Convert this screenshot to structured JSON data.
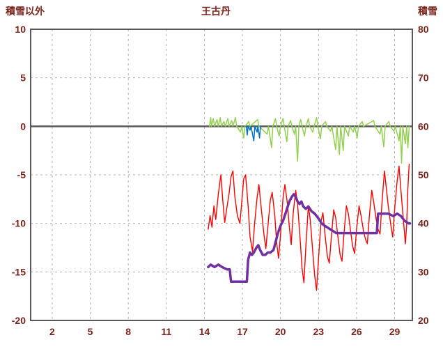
{
  "chart_data": {
    "type": "line",
    "title": "王古丹",
    "left_axis_label": "積雪以外",
    "right_axis_label": "積雪",
    "xlim": [
      0.3,
      30.4
    ],
    "x_ticks": [
      2,
      5,
      8,
      11,
      14,
      17,
      20,
      23,
      26,
      29
    ],
    "left_ylim": [
      -20,
      10
    ],
    "left_ticks": [
      10,
      5,
      0,
      -5,
      -10,
      -15,
      -20
    ],
    "right_ylim": [
      20,
      80
    ],
    "right_ticks": [
      80,
      70,
      60,
      50,
      40,
      30,
      20
    ],
    "zero_line": 0,
    "grid": "dashed",
    "legend": "none",
    "colors": {
      "text": "#7b241c",
      "grid": "#b3b3b3",
      "frame": "#595959",
      "red": "#ff0000",
      "purple": "#7030a0",
      "green": "#92d050",
      "blue": "#0070c0"
    },
    "series": [
      {
        "name": "green",
        "color": "#92d050",
        "axis": "left",
        "width": 1.5,
        "points": [
          [
            14.4,
            0
          ],
          [
            14.5,
            0.9
          ],
          [
            14.55,
            0
          ],
          [
            14.7,
            0.8
          ],
          [
            14.8,
            0
          ],
          [
            15.0,
            0.7
          ],
          [
            15.1,
            0
          ],
          [
            15.25,
            0.9
          ],
          [
            15.35,
            0
          ],
          [
            15.55,
            0.5
          ],
          [
            15.65,
            0
          ],
          [
            15.85,
            0.8
          ],
          [
            15.95,
            0
          ],
          [
            16.15,
            0.6
          ],
          [
            16.25,
            0
          ],
          [
            16.45,
            0.9
          ],
          [
            16.55,
            0
          ],
          [
            16.85,
            -0.6
          ],
          [
            16.95,
            0
          ],
          [
            17.1,
            -1.2
          ],
          [
            17.2,
            0
          ],
          [
            17.5,
            0.5
          ],
          [
            17.6,
            0
          ],
          [
            18.2,
            0.7
          ],
          [
            18.3,
            0
          ],
          [
            18.95,
            -0.8
          ],
          [
            19.05,
            0
          ],
          [
            19.3,
            -2.2
          ],
          [
            19.4,
            0
          ],
          [
            19.6,
            0.8
          ],
          [
            19.7,
            0
          ],
          [
            19.9,
            -1.0
          ],
          [
            20.0,
            0
          ],
          [
            20.2,
            0.8
          ],
          [
            20.3,
            0
          ],
          [
            20.5,
            -1.6
          ],
          [
            20.6,
            0
          ],
          [
            20.8,
            0.6
          ],
          [
            20.9,
            0
          ],
          [
            21.1,
            -0.8
          ],
          [
            21.2,
            0
          ],
          [
            21.35,
            -3.6
          ],
          [
            21.45,
            0
          ],
          [
            21.6,
            0.7
          ],
          [
            21.7,
            0
          ],
          [
            21.9,
            -1.0
          ],
          [
            22.0,
            0
          ],
          [
            22.2,
            0.8
          ],
          [
            22.3,
            0
          ],
          [
            22.55,
            -0.6
          ],
          [
            22.65,
            0
          ],
          [
            22.85,
            0.9
          ],
          [
            22.95,
            0
          ],
          [
            23.15,
            -1.3
          ],
          [
            23.25,
            0
          ],
          [
            23.55,
            0.5
          ],
          [
            23.65,
            0
          ],
          [
            23.95,
            -0.5
          ],
          [
            24.05,
            0
          ],
          [
            24.35,
            -2.4
          ],
          [
            24.45,
            0
          ],
          [
            24.65,
            -2.9
          ],
          [
            24.75,
            0
          ],
          [
            24.95,
            -2.5
          ],
          [
            25.05,
            0
          ],
          [
            25.35,
            -1.0
          ],
          [
            25.45,
            0
          ],
          [
            25.75,
            -0.6
          ],
          [
            25.85,
            0
          ],
          [
            26.05,
            -1.2
          ],
          [
            26.15,
            0
          ],
          [
            26.45,
            0.5
          ],
          [
            26.55,
            0
          ],
          [
            27.35,
            0.6
          ],
          [
            27.45,
            0
          ],
          [
            27.85,
            -0.8
          ],
          [
            27.95,
            0
          ],
          [
            28.15,
            -2.1
          ],
          [
            28.25,
            0
          ],
          [
            28.55,
            0.5
          ],
          [
            28.65,
            0
          ],
          [
            28.95,
            -0.5
          ],
          [
            29.05,
            0
          ],
          [
            29.35,
            -1.5
          ],
          [
            29.45,
            0
          ],
          [
            29.55,
            -3.8
          ],
          [
            29.65,
            0
          ],
          [
            29.85,
            -1.8
          ],
          [
            29.95,
            0
          ],
          [
            30.05,
            -2.2
          ],
          [
            30.15,
            0
          ]
        ]
      },
      {
        "name": "blue",
        "color": "#0070c0",
        "axis": "left",
        "width": 1.5,
        "points": [
          [
            17.3,
            0
          ],
          [
            17.38,
            -0.9
          ],
          [
            17.45,
            0
          ],
          [
            17.6,
            -0.4
          ],
          [
            17.68,
            0
          ],
          [
            17.9,
            -1.5
          ],
          [
            17.98,
            0
          ],
          [
            18.15,
            -0.6
          ],
          [
            18.22,
            0
          ],
          [
            18.35,
            -1.2
          ],
          [
            18.42,
            0
          ]
        ]
      },
      {
        "name": "red",
        "color": "#ff0000",
        "axis": "left",
        "width": 1.4,
        "points": [
          [
            14.3,
            -10.6
          ],
          [
            14.45,
            -9.2
          ],
          [
            14.6,
            -10.4
          ],
          [
            14.75,
            -8.2
          ],
          [
            14.9,
            -9.6
          ],
          [
            15.1,
            -7.0
          ],
          [
            15.3,
            -5.0
          ],
          [
            15.45,
            -7.6
          ],
          [
            15.6,
            -9.9
          ],
          [
            15.75,
            -8.6
          ],
          [
            15.95,
            -6.9
          ],
          [
            16.1,
            -5.2
          ],
          [
            16.25,
            -4.6
          ],
          [
            16.4,
            -7.2
          ],
          [
            16.6,
            -9.2
          ],
          [
            16.8,
            -10.0
          ],
          [
            16.95,
            -7.8
          ],
          [
            17.1,
            -5.4
          ],
          [
            17.25,
            -5.0
          ],
          [
            17.45,
            -8.2
          ],
          [
            17.6,
            -11.4
          ],
          [
            17.8,
            -12.9
          ],
          [
            17.95,
            -10.2
          ],
          [
            18.15,
            -7.4
          ],
          [
            18.3,
            -6.0
          ],
          [
            18.5,
            -8.6
          ],
          [
            18.7,
            -11.2
          ],
          [
            18.85,
            -12.6
          ],
          [
            19.0,
            -10.4
          ],
          [
            19.2,
            -7.6
          ],
          [
            19.35,
            -6.8
          ],
          [
            19.55,
            -9.2
          ],
          [
            19.7,
            -12.0
          ],
          [
            19.85,
            -13.6
          ],
          [
            20.0,
            -11.2
          ],
          [
            20.2,
            -7.4
          ],
          [
            20.35,
            -6.0
          ],
          [
            20.55,
            -8.0
          ],
          [
            20.7,
            -10.4
          ],
          [
            20.85,
            -12.2
          ],
          [
            21.0,
            -9.0
          ],
          [
            21.2,
            -6.6
          ],
          [
            21.35,
            -8.0
          ],
          [
            21.55,
            -11.6
          ],
          [
            21.7,
            -14.6
          ],
          [
            21.85,
            -16.1
          ],
          [
            22.0,
            -12.4
          ],
          [
            22.2,
            -8.2
          ],
          [
            22.35,
            -9.6
          ],
          [
            22.55,
            -13.0
          ],
          [
            22.7,
            -15.4
          ],
          [
            22.85,
            -16.9
          ],
          [
            23.0,
            -13.6
          ],
          [
            23.2,
            -9.8
          ],
          [
            23.35,
            -8.9
          ],
          [
            23.5,
            -11.0
          ],
          [
            23.7,
            -13.4
          ],
          [
            23.85,
            -14.1
          ],
          [
            24.0,
            -11.6
          ],
          [
            24.2,
            -8.6
          ],
          [
            24.35,
            -9.4
          ],
          [
            24.55,
            -11.6
          ],
          [
            24.7,
            -13.2
          ],
          [
            24.85,
            -13.9
          ],
          [
            25.0,
            -11.2
          ],
          [
            25.2,
            -8.2
          ],
          [
            25.35,
            -9.0
          ],
          [
            25.55,
            -11.0
          ],
          [
            25.7,
            -12.4
          ],
          [
            25.85,
            -13.1
          ],
          [
            26.0,
            -10.6
          ],
          [
            26.2,
            -8.2
          ],
          [
            26.35,
            -9.2
          ],
          [
            26.55,
            -10.8
          ],
          [
            26.7,
            -11.6
          ],
          [
            26.85,
            -12.1
          ],
          [
            27.0,
            -9.4
          ],
          [
            27.2,
            -6.6
          ],
          [
            27.35,
            -7.8
          ],
          [
            27.55,
            -9.6
          ],
          [
            27.7,
            -10.6
          ],
          [
            27.85,
            -11.1
          ],
          [
            28.0,
            -8.0
          ],
          [
            28.2,
            -4.6
          ],
          [
            28.35,
            -6.4
          ],
          [
            28.5,
            -8.2
          ],
          [
            28.7,
            -10.1
          ],
          [
            28.85,
            -11.4
          ],
          [
            29.0,
            -8.6
          ],
          [
            29.2,
            -5.6
          ],
          [
            29.35,
            -4.1
          ],
          [
            29.5,
            -6.6
          ],
          [
            29.7,
            -9.8
          ],
          [
            29.85,
            -12.1
          ],
          [
            29.95,
            -10.2
          ],
          [
            30.05,
            -6.4
          ],
          [
            30.15,
            -3.9
          ]
        ]
      },
      {
        "name": "purple",
        "color": "#7030a0",
        "axis": "right",
        "width": 3.5,
        "points": [
          [
            14.3,
            31
          ],
          [
            14.5,
            31.5
          ],
          [
            14.8,
            31
          ],
          [
            15.1,
            31.5
          ],
          [
            15.4,
            31
          ],
          [
            15.8,
            30.5
          ],
          [
            16.0,
            30.5
          ],
          [
            16.1,
            28
          ],
          [
            16.6,
            28
          ],
          [
            17.1,
            28
          ],
          [
            17.35,
            28
          ],
          [
            17.45,
            32.5
          ],
          [
            17.6,
            34
          ],
          [
            17.75,
            33.5
          ],
          [
            17.9,
            34
          ],
          [
            18.1,
            35
          ],
          [
            18.25,
            35.5
          ],
          [
            18.4,
            34.5
          ],
          [
            18.6,
            33.5
          ],
          [
            18.8,
            33.5
          ],
          [
            19.0,
            34
          ],
          [
            19.2,
            34
          ],
          [
            19.45,
            34.5
          ],
          [
            19.6,
            36
          ],
          [
            19.8,
            38
          ],
          [
            20.0,
            39.5
          ],
          [
            20.2,
            40.5
          ],
          [
            20.45,
            42.5
          ],
          [
            20.7,
            44.5
          ],
          [
            20.9,
            45.5
          ],
          [
            21.05,
            46
          ],
          [
            21.2,
            45.5
          ],
          [
            21.35,
            44.5
          ],
          [
            21.5,
            44
          ],
          [
            21.65,
            44.5
          ],
          [
            21.8,
            43.5
          ],
          [
            22.0,
            43
          ],
          [
            22.2,
            43.5
          ],
          [
            22.45,
            42.5
          ],
          [
            22.7,
            42
          ],
          [
            23.0,
            41
          ],
          [
            23.25,
            40
          ],
          [
            23.5,
            39.5
          ],
          [
            23.8,
            39
          ],
          [
            24.1,
            38.5
          ],
          [
            24.4,
            38
          ],
          [
            24.8,
            38
          ],
          [
            25.3,
            38
          ],
          [
            25.8,
            38
          ],
          [
            26.3,
            38
          ],
          [
            26.8,
            38
          ],
          [
            27.3,
            38
          ],
          [
            27.6,
            38
          ],
          [
            27.7,
            42
          ],
          [
            28.1,
            42
          ],
          [
            28.5,
            42
          ],
          [
            28.9,
            41.5
          ],
          [
            29.2,
            42
          ],
          [
            29.5,
            41.5
          ],
          [
            29.8,
            40.5
          ],
          [
            30.1,
            40
          ],
          [
            30.2,
            40
          ]
        ]
      }
    ]
  }
}
